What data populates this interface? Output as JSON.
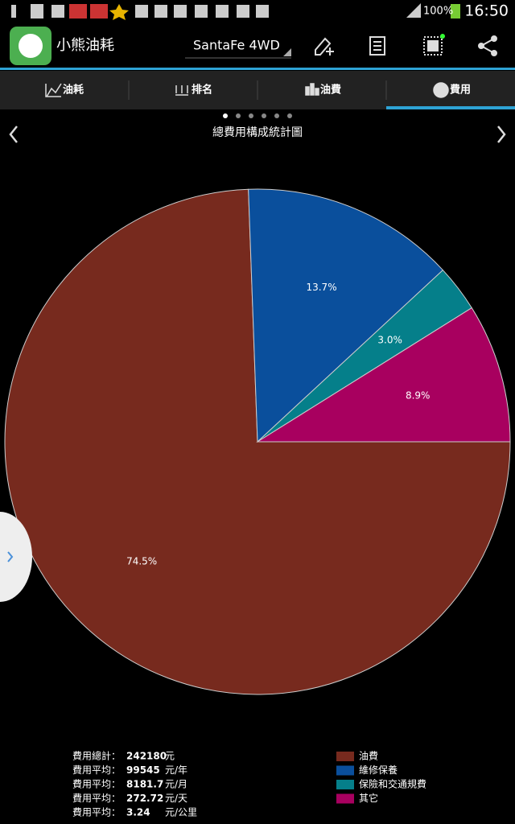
{
  "status_bar": {
    "battery": "100%",
    "time": "16:50"
  },
  "app_bar": {
    "title": "小熊油耗",
    "vehicle": "SantaFe 4WD"
  },
  "tabs": [
    "油耗",
    "排名",
    "油費",
    "費用"
  ],
  "chart_data": {
    "type": "pie",
    "title": "總費用構成統計圖",
    "categories": [
      "油費",
      "維修保養",
      "保險和交通規費",
      "其它"
    ],
    "values": [
      74.5,
      13.7,
      3.0,
      8.9
    ],
    "value_labels": [
      "74.5%",
      "13.7%",
      "3.0%",
      "8.9%"
    ],
    "colors": [
      "#772a1e",
      "#0a4f9c",
      "#057f8a",
      "#a8005f"
    ]
  },
  "summary": [
    {
      "label": "費用總計：",
      "value": 242180,
      "unit": "元"
    },
    {
      "label": "費用平均：",
      "value": 99545,
      "unit": "元/年"
    },
    {
      "label": "費用平均：",
      "value": 8181.7,
      "unit": "元/月"
    },
    {
      "label": "費用平均：",
      "value": 272.72,
      "unit": "元/天"
    },
    {
      "label": "費用平均：",
      "value": 3.24,
      "unit": "元/公里"
    }
  ]
}
